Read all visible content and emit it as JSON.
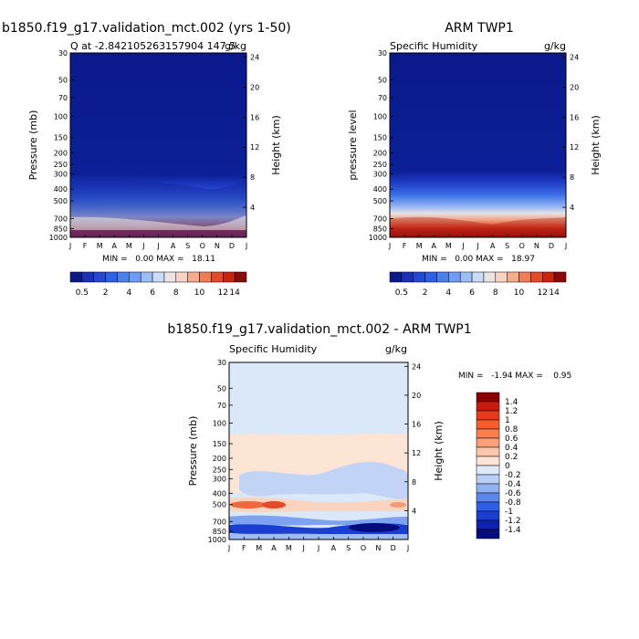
{
  "chart_data": [
    {
      "type": "heatmap",
      "title": "b1850.f19_g17.validation_mct.002 (yrs 1-50)",
      "subtitle_left": "Q at -2.842105263157904 147.5",
      "subtitle_right": "g/kg",
      "ylabel": "Pressure (mb)",
      "ylabel_right": "Height (km)",
      "x_ticks": [
        "J",
        "F",
        "M",
        "A",
        "M",
        "J",
        "J",
        "A",
        "S",
        "O",
        "N",
        "D",
        "J"
      ],
      "y_ticks": [
        "30",
        "50",
        "70",
        "100",
        "150",
        "200",
        "250",
        "300",
        "400",
        "500",
        "700",
        "850",
        "1000"
      ],
      "y2_ticks": [
        "24",
        "20",
        "16",
        "12",
        "8",
        "4"
      ],
      "y_range": [
        1000,
        30
      ],
      "min_text": "MIN =   0.00 MAX =   18.11",
      "min": 0.0,
      "max": 18.11,
      "colorbar_labels": [
        "0.5",
        "2",
        "4",
        "6",
        "8",
        "10",
        "12",
        "14"
      ]
    },
    {
      "type": "heatmap",
      "title": "ARM TWP1",
      "subtitle_left": "Specific Humidity",
      "subtitle_right": "g/kg",
      "ylabel": "pressure level",
      "ylabel_right": "Height (km)",
      "x_ticks": [
        "J",
        "F",
        "M",
        "A",
        "M",
        "J",
        "J",
        "A",
        "S",
        "O",
        "N",
        "D",
        "J"
      ],
      "y_ticks": [
        "30",
        "50",
        "70",
        "100",
        "150",
        "200",
        "250",
        "300",
        "400",
        "500",
        "700",
        "850",
        "1000"
      ],
      "y2_ticks": [
        "24",
        "20",
        "16",
        "12",
        "8",
        "4"
      ],
      "y_range": [
        1000,
        30
      ],
      "min_text": "MIN =   0.00 MAX =   18.97",
      "min": 0.0,
      "max": 18.97,
      "colorbar_labels": [
        "0.5",
        "2",
        "4",
        "6",
        "8",
        "10",
        "12",
        "14"
      ]
    },
    {
      "type": "heatmap",
      "title": "b1850.f19_g17.validation_mct.002 - ARM TWP1",
      "subtitle_left": "Specific Humidity",
      "subtitle_right": "g/kg",
      "ylabel": "Pressure (mb)",
      "ylabel_right": "Height (km)",
      "x_ticks": [
        "J",
        "F",
        "M",
        "A",
        "M",
        "J",
        "J",
        "A",
        "S",
        "O",
        "N",
        "D",
        "J"
      ],
      "y_ticks": [
        "30",
        "50",
        "70",
        "100",
        "150",
        "200",
        "250",
        "300",
        "400",
        "500",
        "700",
        "850",
        "1000"
      ],
      "y2_ticks": [
        "24",
        "20",
        "16",
        "12",
        "8",
        "4"
      ],
      "y_range": [
        1000,
        30
      ],
      "min_text": "MIN =   -1.94 MAX =    0.95",
      "min": -1.94,
      "max": 0.95,
      "colorbar_labels": [
        "1.4",
        "1.2",
        "1",
        "0.8",
        "0.6",
        "0.4",
        "0.2",
        "0",
        "-0.2",
        "-0.4",
        "-0.6",
        "-0.8",
        "-1",
        "-1.2",
        "-1.4"
      ]
    }
  ],
  "colors": {
    "seq": [
      "#0a1a8c",
      "#1b2fb8",
      "#2348d6",
      "#2f5fe6",
      "#4a7ff0",
      "#6f9cf4",
      "#9dbdf7",
      "#c8dbfa",
      "#ece4e2",
      "#f9d4c4",
      "#f5ad8e",
      "#f07c58",
      "#e34a2b",
      "#c8240f",
      "#8b0a0a"
    ],
    "div": [
      "#8b0000",
      "#c71a10",
      "#e63b1b",
      "#fa5a2c",
      "#fb7e4f",
      "#fba07b",
      "#fcc7aa",
      "#fde4d4",
      "#dfeaf8",
      "#b9cff5",
      "#90b2f2",
      "#5a86ee",
      "#2f5fe6",
      "#1a3fd0",
      "#0d22a8",
      "#040b7a"
    ]
  }
}
